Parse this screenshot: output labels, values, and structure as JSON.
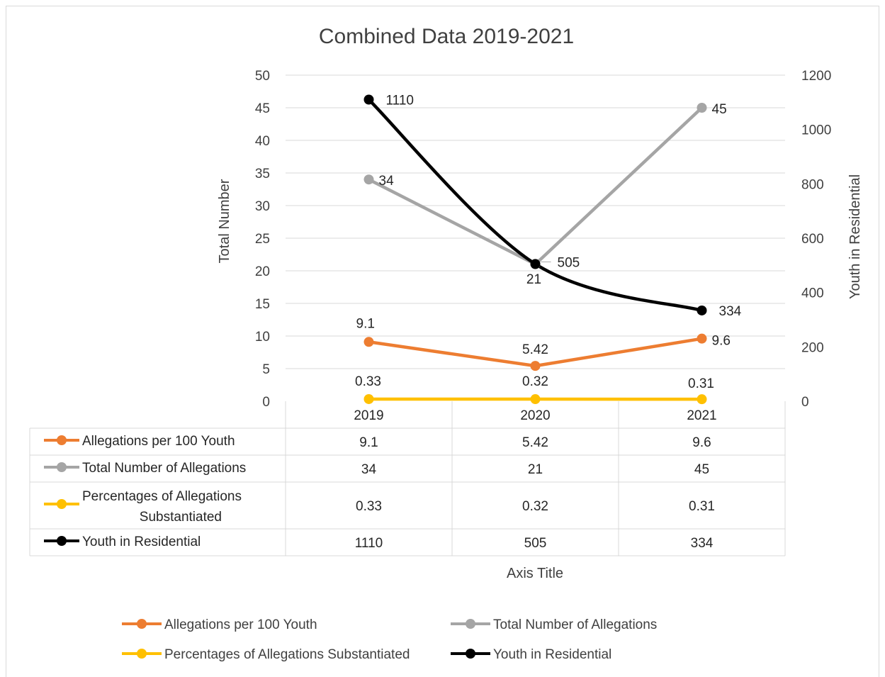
{
  "chart_data": {
    "type": "line",
    "title": "Combined Data 2019-2021",
    "categories": [
      "2019",
      "2020",
      "2021"
    ],
    "xlabel": "Axis Title",
    "ylabel": "Total Number",
    "y2label": "Youth in Residential",
    "ylim": [
      0,
      50
    ],
    "y2lim": [
      0,
      1200
    ],
    "yticks": [
      "0",
      "5",
      "10",
      "15",
      "20",
      "25",
      "30",
      "35",
      "40",
      "45",
      "50"
    ],
    "y2ticks": [
      "0",
      "200",
      "400",
      "600",
      "800",
      "1000",
      "1200"
    ],
    "grid": true,
    "legend_position": "bottom",
    "data_table": true,
    "series": [
      {
        "name": "Allegations per 100 Youth",
        "table_label_lines": [
          "Allegations per 100 Youth"
        ],
        "values": [
          9.1,
          5.42,
          9.6
        ],
        "labels": [
          "9.1",
          "5.42",
          "9.6"
        ],
        "axis": "primary",
        "smooth": false,
        "color": "#ED7D31"
      },
      {
        "name": "Total Number of  Allegations",
        "table_label_lines": [
          "Total Number of  Allegations"
        ],
        "values": [
          34,
          21,
          45
        ],
        "labels": [
          "34",
          "21",
          "45"
        ],
        "axis": "primary",
        "smooth": false,
        "color": "#A5A5A5"
      },
      {
        "name": "Percentages of Allegations Substantiated",
        "table_label_lines": [
          "Percentages of Allegations",
          "Substantiated"
        ],
        "values": [
          0.33,
          0.32,
          0.31
        ],
        "labels": [
          "0.33",
          "0.32",
          "0.31"
        ],
        "axis": "primary",
        "smooth": false,
        "color": "#FFC000"
      },
      {
        "name": "Youth in Residential",
        "table_label_lines": [
          "Youth in Residential"
        ],
        "values": [
          1110,
          505,
          334
        ],
        "labels": [
          "1110",
          "505",
          "334"
        ],
        "axis": "secondary",
        "smooth": true,
        "color": "#000000"
      }
    ]
  }
}
